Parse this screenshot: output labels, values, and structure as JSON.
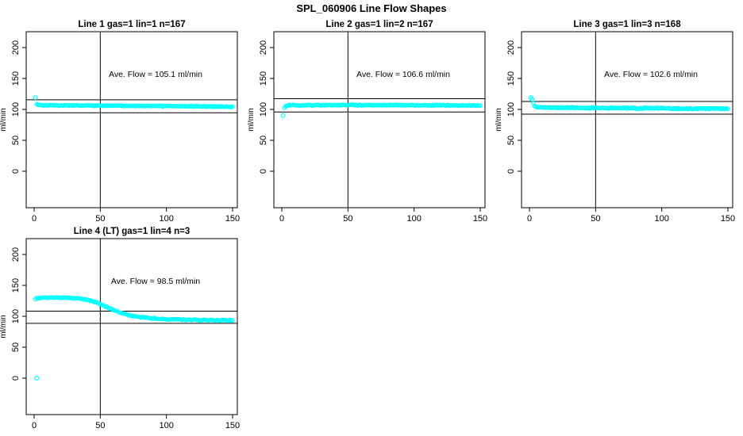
{
  "figure_title": "SPL_060906  Line Flow Shapes",
  "colors": {
    "points": "#00FFFF",
    "axis": "#000000",
    "background": "#FFFFFF"
  },
  "chart_data": [
    {
      "type": "scatter",
      "title": "Line 1 gas=1 lin=1 n=167",
      "annotation": "Ave. Flow =  105.1  ml/min",
      "ave_flow_ml_min": 105.1,
      "n": 167,
      "ylabel": "ml/min",
      "xticks": [
        0,
        50,
        100,
        150
      ],
      "yticks": [
        0,
        50,
        100,
        150,
        200
      ],
      "xlim": [
        -6,
        154
      ],
      "ylim": [
        -55,
        226
      ],
      "vline_x": 50,
      "hlines": [
        115.6,
        94.6
      ],
      "marker": "open-circle",
      "outlier_points": [
        [
          1,
          119
        ]
      ],
      "band_profile": [
        [
          2,
          108.5
        ],
        [
          4,
          107
        ],
        [
          8,
          106.5
        ],
        [
          30,
          106.3
        ],
        [
          70,
          105.8
        ],
        [
          110,
          105.2
        ],
        [
          150,
          104.3
        ]
      ],
      "point_count": 166,
      "scatter_sd": 0.45
    },
    {
      "type": "scatter",
      "title": "Line 2 gas=1 lin=2 n=167",
      "annotation": "Ave. Flow =  106.6  ml/min",
      "ave_flow_ml_min": 106.6,
      "n": 167,
      "ylabel": "ml/min",
      "xticks": [
        0,
        50,
        100,
        150
      ],
      "yticks": [
        0,
        50,
        100,
        150,
        200
      ],
      "xlim": [
        -6,
        154
      ],
      "ylim": [
        -55,
        226
      ],
      "vline_x": 50,
      "hlines": [
        117.3,
        95.9
      ],
      "marker": "open-circle",
      "outlier_points": [
        [
          1,
          90
        ]
      ],
      "band_profile": [
        [
          2,
          103
        ],
        [
          3,
          105.5
        ],
        [
          6,
          106.6
        ],
        [
          40,
          106.9
        ],
        [
          90,
          106.9
        ],
        [
          150,
          106.3
        ]
      ],
      "point_count": 166,
      "scatter_sd": 0.45
    },
    {
      "type": "scatter",
      "title": "Line 3 gas=1 lin=3 n=168",
      "annotation": "Ave. Flow =  102.6  ml/min",
      "ave_flow_ml_min": 102.6,
      "n": 168,
      "ylabel": "ml/min",
      "xticks": [
        0,
        50,
        100,
        150
      ],
      "yticks": [
        0,
        50,
        100,
        150,
        200
      ],
      "xlim": [
        -6,
        154
      ],
      "ylim": [
        -55,
        226
      ],
      "vline_x": 50,
      "hlines": [
        112.9,
        92.3
      ],
      "marker": "open-circle",
      "outlier_points": [
        [
          1,
          119
        ],
        [
          2,
          116.5
        ]
      ],
      "band_profile": [
        [
          3,
          110
        ],
        [
          4,
          106
        ],
        [
          6,
          103.8
        ],
        [
          15,
          102.9
        ],
        [
          50,
          102.4
        ],
        [
          100,
          101.8
        ],
        [
          150,
          101.2
        ]
      ],
      "point_count": 166,
      "scatter_sd": 0.7
    },
    {
      "type": "scatter",
      "title": "Line 4 (LT) gas=1 lin=4 n=3",
      "annotation": "Ave. Flow =  98.5  ml/min",
      "ave_flow_ml_min": 98.5,
      "n": 3,
      "ylabel": "ml/min",
      "xticks": [
        0,
        50,
        100,
        150
      ],
      "yticks": [
        0,
        50,
        100,
        150,
        200
      ],
      "xlim": [
        -6,
        154
      ],
      "ylim": [
        -55,
        226
      ],
      "vline_x": 50,
      "hlines": [
        108.4,
        88.7
      ],
      "marker": "open-circle",
      "outlier_points": [
        [
          2,
          0
        ]
      ],
      "band_profile": [
        [
          1,
          128.5
        ],
        [
          6,
          130
        ],
        [
          15,
          130.5
        ],
        [
          25,
          130
        ],
        [
          35,
          128.5
        ],
        [
          45,
          124
        ],
        [
          52,
          118
        ],
        [
          58,
          112
        ],
        [
          64,
          106.5
        ],
        [
          72,
          101.5
        ],
        [
          80,
          98.5
        ],
        [
          90,
          96.5
        ],
        [
          105,
          95
        ],
        [
          125,
          94
        ],
        [
          150,
          93.2
        ]
      ],
      "point_count": 150,
      "scatter_sd": 0.6
    }
  ]
}
